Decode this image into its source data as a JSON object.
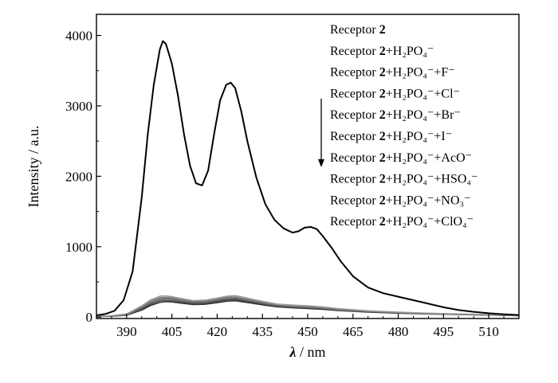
{
  "chart_data": {
    "type": "line",
    "title": "",
    "xlabel_symbol": "λ",
    "xlabel_unit": "nm",
    "xlabel_sep": " / ",
    "ylabel": "Intensity / a.u.",
    "xlim": [
      380,
      520
    ],
    "ylim": [
      -20,
      4300
    ],
    "x_ticks": [
      390,
      405,
      420,
      435,
      450,
      465,
      480,
      495,
      510
    ],
    "y_ticks": [
      0,
      1000,
      2000,
      3000,
      4000
    ],
    "legend_position": "top-right",
    "legend_arrow": "down",
    "legend": [
      {
        "prefix": "Receptor ",
        "bold": "2",
        "suffix": ""
      },
      {
        "prefix": "Receptor ",
        "bold": "2",
        "suffix": "+H₂PO₄⁻"
      },
      {
        "prefix": "Receptor ",
        "bold": "2",
        "suffix": "+H₂PO₄⁻+F⁻"
      },
      {
        "prefix": "Receptor ",
        "bold": "2",
        "suffix": "+H₂PO₄⁻+Cl⁻"
      },
      {
        "prefix": "Receptor ",
        "bold": "2",
        "suffix": "+H₂PO₄⁻+Br⁻"
      },
      {
        "prefix": "Receptor ",
        "bold": "2",
        "suffix": "+H₂PO₄⁻+I⁻"
      },
      {
        "prefix": "Receptor ",
        "bold": "2",
        "suffix": "+H₂PO₄⁻+AcO⁻"
      },
      {
        "prefix": "Receptor ",
        "bold": "2",
        "suffix": "+H₂PO₄⁻+HSO₄⁻"
      },
      {
        "prefix": "Receptor ",
        "bold": "2",
        "suffix": "+H₂PO₄⁻+NO₃⁻"
      },
      {
        "prefix": "Receptor ",
        "bold": "2",
        "suffix": "+H₂PO₄⁻+ClO₄⁻"
      }
    ],
    "series": [
      {
        "color": "#000000",
        "x": [
          380,
          383,
          386,
          389,
          392,
          395,
          397,
          399,
          401,
          402,
          403,
          405,
          407,
          409,
          411,
          413,
          415,
          417,
          419,
          421,
          423,
          424.5,
          426,
          428,
          430,
          433,
          436,
          439,
          442,
          445,
          447,
          449,
          451,
          453,
          455,
          458,
          461,
          465,
          470,
          475,
          480,
          485,
          490,
          495,
          500,
          505,
          510,
          515,
          520
        ],
        "y": [
          25,
          45,
          90,
          240,
          650,
          1700,
          2600,
          3300,
          3800,
          3920,
          3880,
          3600,
          3150,
          2600,
          2150,
          1900,
          1870,
          2080,
          2600,
          3080,
          3300,
          3330,
          3250,
          2920,
          2500,
          1980,
          1600,
          1380,
          1260,
          1200,
          1220,
          1270,
          1280,
          1250,
          1150,
          980,
          790,
          580,
          420,
          340,
          290,
          240,
          190,
          140,
          100,
          75,
          55,
          40,
          30
        ]
      },
      {
        "color": "#9a9a9a",
        "x": [
          380,
          385,
          390,
          395,
          398,
          401,
          403,
          405,
          408,
          412,
          416,
          420,
          423,
          426,
          429,
          432,
          436,
          440,
          445,
          450,
          455,
          460,
          470,
          480,
          490,
          500,
          510,
          520
        ],
        "y": [
          10,
          20,
          45,
          160,
          245,
          295,
          300,
          290,
          265,
          235,
          240,
          270,
          295,
          305,
          280,
          250,
          215,
          185,
          170,
          160,
          145,
          120,
          90,
          70,
          55,
          45,
          35,
          25
        ]
      },
      {
        "color": "#7d7d7d",
        "x": [
          380,
          385,
          390,
          395,
          398,
          401,
          403,
          405,
          408,
          412,
          416,
          420,
          423,
          426,
          429,
          432,
          436,
          440,
          445,
          450,
          455,
          460,
          470,
          480,
          490,
          500,
          510,
          520
        ],
        "y": [
          10,
          18,
          40,
          145,
          225,
          275,
          280,
          272,
          250,
          222,
          226,
          255,
          278,
          285,
          262,
          235,
          202,
          175,
          160,
          150,
          135,
          112,
          85,
          66,
          52,
          42,
          33,
          24
        ]
      },
      {
        "color": "#666666",
        "x": [
          380,
          385,
          390,
          395,
          398,
          401,
          403,
          405,
          408,
          412,
          416,
          420,
          423,
          426,
          429,
          432,
          436,
          440,
          445,
          450,
          455,
          460,
          470,
          480,
          490,
          500,
          510,
          520
        ],
        "y": [
          10,
          16,
          35,
          130,
          205,
          255,
          262,
          255,
          235,
          208,
          212,
          240,
          262,
          268,
          247,
          222,
          190,
          165,
          150,
          140,
          126,
          105,
          80,
          62,
          49,
          40,
          31,
          23
        ]
      },
      {
        "color": "#4a4a4a",
        "x": [
          380,
          385,
          390,
          395,
          398,
          401,
          403,
          405,
          408,
          412,
          416,
          420,
          423,
          426,
          429,
          432,
          436,
          440,
          445,
          450,
          455,
          460,
          470,
          480,
          490,
          500,
          510,
          520
        ],
        "y": [
          9,
          15,
          30,
          115,
          185,
          232,
          240,
          235,
          215,
          192,
          196,
          222,
          243,
          250,
          230,
          208,
          178,
          155,
          140,
          131,
          118,
          99,
          76,
          59,
          47,
          38,
          30,
          22
        ]
      },
      {
        "color": "#333333",
        "x": [
          380,
          385,
          390,
          395,
          398,
          401,
          403,
          405,
          408,
          412,
          416,
          420,
          423,
          426,
          429,
          432,
          436,
          440,
          445,
          450,
          455,
          460,
          470,
          480,
          490,
          500,
          510,
          520
        ],
        "y": [
          8,
          13,
          26,
          100,
          165,
          210,
          220,
          215,
          198,
          178,
          182,
          205,
          225,
          232,
          214,
          194,
          167,
          146,
          132,
          123,
          111,
          93,
          72,
          56,
          45,
          36,
          29,
          21
        ]
      }
    ]
  }
}
